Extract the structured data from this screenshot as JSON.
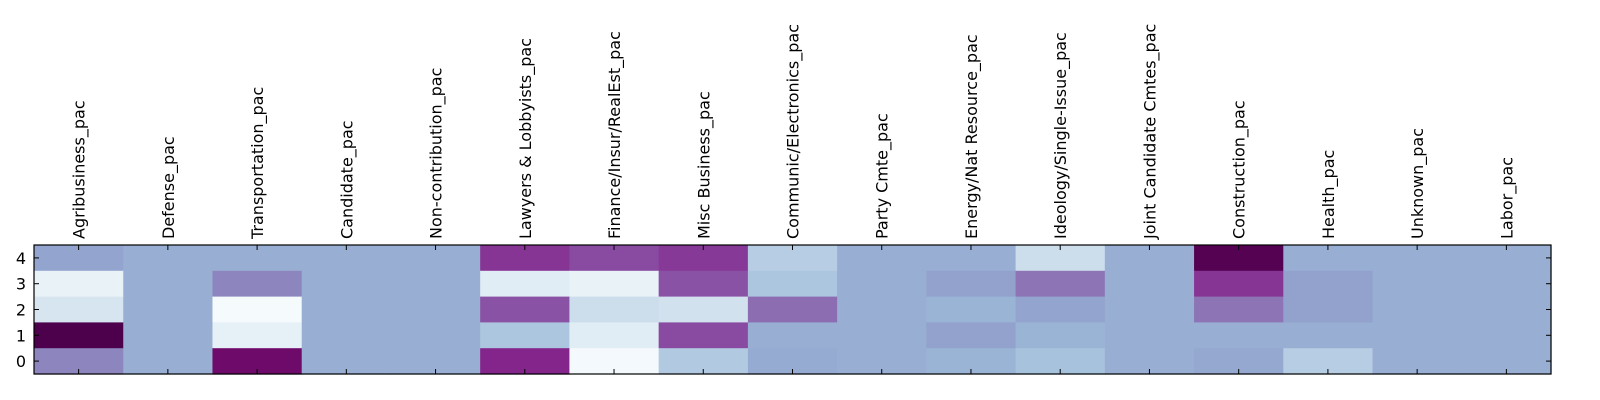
{
  "chart_data": {
    "type": "heatmap",
    "title": "",
    "xlabel": "",
    "ylabel": "",
    "colormap": "BuPu",
    "color_stops": [
      "#f7fcfd",
      "#e0ecf4",
      "#bfd3e6",
      "#9ebcda",
      "#8c96c6",
      "#8c6bb1",
      "#88419d",
      "#810f7c",
      "#4d004b"
    ],
    "value_range": [
      0,
      1
    ],
    "columns": [
      "Agribusiness_pac",
      "Defense_pac",
      "Transportation_pac",
      "Candidate_pac",
      "Non-contribution_pac",
      "Lawyers & Lobbyists_pac",
      "Finance/Insur/RealEst_pac",
      "Misc Business_pac",
      "Communic/Electronics_pac",
      "Party Cmte_pac",
      "Energy/Nat Resource_pac",
      "Ideology/Single-Issue_pac",
      "Joint Candidate Cmtes_pac",
      "Construction_pac",
      "Health_pac",
      "Unknown_pac",
      "Labor_pac"
    ],
    "rows": [
      "4",
      "3",
      "2",
      "1",
      "0"
    ],
    "values": [
      [
        0.45,
        0.42,
        0.42,
        0.42,
        0.42,
        0.78,
        0.72,
        0.77,
        0.28,
        0.42,
        0.42,
        0.2,
        0.42,
        0.98,
        0.42,
        0.42,
        0.42
      ],
      [
        0.08,
        0.42,
        0.55,
        0.42,
        0.42,
        0.12,
        0.08,
        0.7,
        0.32,
        0.42,
        0.46,
        0.6,
        0.42,
        0.78,
        0.46,
        0.42,
        0.42
      ],
      [
        0.16,
        0.42,
        0.01,
        0.42,
        0.42,
        0.7,
        0.2,
        0.18,
        0.62,
        0.42,
        0.4,
        0.45,
        0.42,
        0.6,
        0.46,
        0.42,
        0.42
      ],
      [
        1.0,
        0.42,
        0.09,
        0.42,
        0.42,
        0.32,
        0.12,
        0.72,
        0.42,
        0.42,
        0.46,
        0.4,
        0.42,
        0.42,
        0.42,
        0.42,
        0.42
      ],
      [
        0.55,
        0.42,
        0.92,
        0.42,
        0.42,
        0.82,
        0.02,
        0.3,
        0.43,
        0.42,
        0.4,
        0.34,
        0.42,
        0.44,
        0.28,
        0.42,
        0.42
      ]
    ]
  }
}
